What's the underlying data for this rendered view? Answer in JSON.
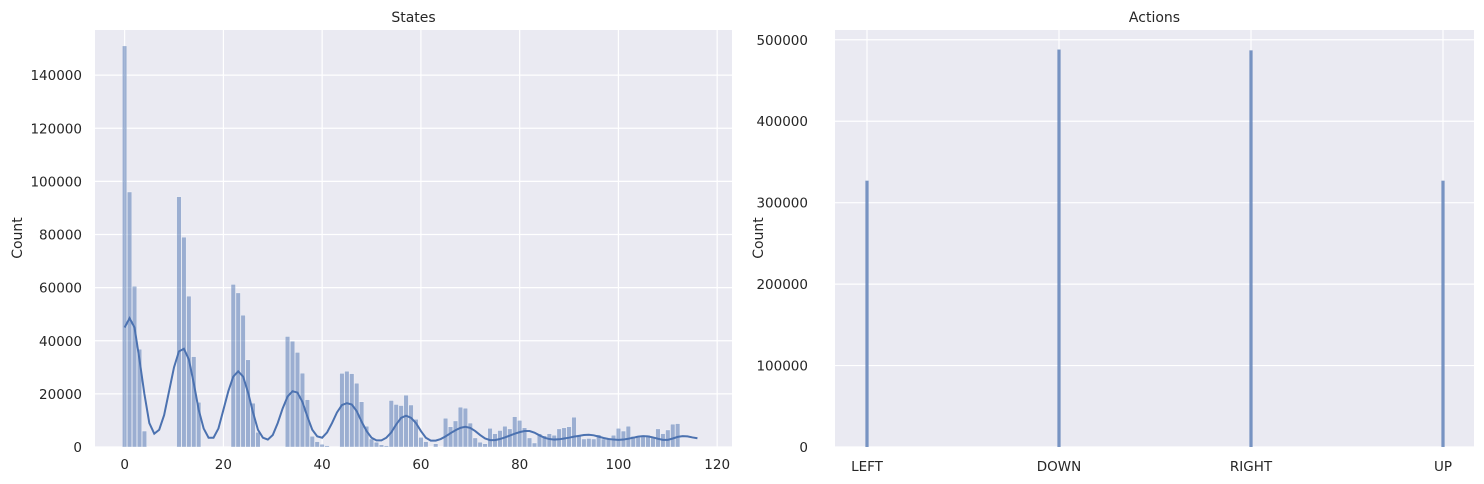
{
  "chart_data": [
    {
      "type": "histogram",
      "title": "States",
      "xlabel": "",
      "ylabel": "Count",
      "xlim": [
        -6,
        123
      ],
      "ylim": [
        0,
        157000
      ],
      "xticks": [
        0,
        20,
        40,
        60,
        80,
        100,
        120
      ],
      "yticks": [
        0,
        20000,
        40000,
        60000,
        80000,
        100000,
        120000,
        140000
      ],
      "grid": true,
      "bar_color": "#4c72b0",
      "kde": true,
      "bins": [
        {
          "x": 0,
          "count": 151000
        },
        {
          "x": 1,
          "count": 96000
        },
        {
          "x": 2,
          "count": 60500
        },
        {
          "x": 3,
          "count": 36800
        },
        {
          "x": 4,
          "count": 6000
        },
        {
          "x": 11,
          "count": 94200
        },
        {
          "x": 12,
          "count": 79000
        },
        {
          "x": 13,
          "count": 56800
        },
        {
          "x": 14,
          "count": 34000
        },
        {
          "x": 15,
          "count": 16800
        },
        {
          "x": 22,
          "count": 61200
        },
        {
          "x": 23,
          "count": 58000
        },
        {
          "x": 24,
          "count": 49600
        },
        {
          "x": 25,
          "count": 32800
        },
        {
          "x": 26,
          "count": 16500
        },
        {
          "x": 27,
          "count": 5500
        },
        {
          "x": 33,
          "count": 41600
        },
        {
          "x": 34,
          "count": 39800
        },
        {
          "x": 35,
          "count": 35600
        },
        {
          "x": 36,
          "count": 27800
        },
        {
          "x": 37,
          "count": 17800
        },
        {
          "x": 38,
          "count": 4000
        },
        {
          "x": 39,
          "count": 2000
        },
        {
          "x": 40,
          "count": 1000
        },
        {
          "x": 41,
          "count": 500
        },
        {
          "x": 44,
          "count": 27700
        },
        {
          "x": 45,
          "count": 28500
        },
        {
          "x": 46,
          "count": 27600
        },
        {
          "x": 47,
          "count": 24000
        },
        {
          "x": 48,
          "count": 17000
        },
        {
          "x": 49,
          "count": 7800
        },
        {
          "x": 50,
          "count": 3000
        },
        {
          "x": 51,
          "count": 1800
        },
        {
          "x": 52,
          "count": 800
        },
        {
          "x": 53,
          "count": 500
        },
        {
          "x": 54,
          "count": 17500
        },
        {
          "x": 55,
          "count": 16000
        },
        {
          "x": 56,
          "count": 15600
        },
        {
          "x": 57,
          "count": 19500
        },
        {
          "x": 58,
          "count": 15800
        },
        {
          "x": 59,
          "count": 10400
        },
        {
          "x": 60,
          "count": 3600
        },
        {
          "x": 61,
          "count": 2000
        },
        {
          "x": 63,
          "count": 1200
        },
        {
          "x": 65,
          "count": 10800
        },
        {
          "x": 66,
          "count": 7600
        },
        {
          "x": 67,
          "count": 9800
        },
        {
          "x": 68,
          "count": 15000
        },
        {
          "x": 69,
          "count": 14600
        },
        {
          "x": 70,
          "count": 9000
        },
        {
          "x": 71,
          "count": 3400
        },
        {
          "x": 72,
          "count": 1800
        },
        {
          "x": 73,
          "count": 1200
        },
        {
          "x": 74,
          "count": 7000
        },
        {
          "x": 75,
          "count": 5000
        },
        {
          "x": 76,
          "count": 6200
        },
        {
          "x": 77,
          "count": 7800
        },
        {
          "x": 78,
          "count": 6800
        },
        {
          "x": 79,
          "count": 11400
        },
        {
          "x": 80,
          "count": 10000
        },
        {
          "x": 81,
          "count": 7200
        },
        {
          "x": 82,
          "count": 3400
        },
        {
          "x": 83,
          "count": 1500
        },
        {
          "x": 84,
          "count": 5000
        },
        {
          "x": 85,
          "count": 4200
        },
        {
          "x": 86,
          "count": 5000
        },
        {
          "x": 87,
          "count": 4400
        },
        {
          "x": 88,
          "count": 6800
        },
        {
          "x": 89,
          "count": 7200
        },
        {
          "x": 90,
          "count": 7600
        },
        {
          "x": 91,
          "count": 11200
        },
        {
          "x": 92,
          "count": 4400
        },
        {
          "x": 93,
          "count": 3000
        },
        {
          "x": 94,
          "count": 3200
        },
        {
          "x": 95,
          "count": 3000
        },
        {
          "x": 96,
          "count": 4600
        },
        {
          "x": 97,
          "count": 3000
        },
        {
          "x": 98,
          "count": 3200
        },
        {
          "x": 99,
          "count": 4400
        },
        {
          "x": 100,
          "count": 7000
        },
        {
          "x": 101,
          "count": 6000
        },
        {
          "x": 102,
          "count": 7800
        },
        {
          "x": 103,
          "count": 4000
        },
        {
          "x": 104,
          "count": 3600
        },
        {
          "x": 105,
          "count": 3800
        },
        {
          "x": 106,
          "count": 4400
        },
        {
          "x": 107,
          "count": 3800
        },
        {
          "x": 108,
          "count": 6800
        },
        {
          "x": 109,
          "count": 5000
        },
        {
          "x": 110,
          "count": 6400
        },
        {
          "x": 111,
          "count": 8600
        },
        {
          "x": 112,
          "count": 8800
        }
      ],
      "kde_curve": [
        {
          "x": 0,
          "y": 45000
        },
        {
          "x": 1,
          "y": 48500
        },
        {
          "x": 2,
          "y": 45000
        },
        {
          "x": 3,
          "y": 33000
        },
        {
          "x": 4,
          "y": 20000
        },
        {
          "x": 5,
          "y": 9000
        },
        {
          "x": 6,
          "y": 5000
        },
        {
          "x": 7,
          "y": 6500
        },
        {
          "x": 8,
          "y": 12000
        },
        {
          "x": 9,
          "y": 21000
        },
        {
          "x": 10,
          "y": 30000
        },
        {
          "x": 11,
          "y": 36000
        },
        {
          "x": 12,
          "y": 37000
        },
        {
          "x": 13,
          "y": 33000
        },
        {
          "x": 14,
          "y": 24000
        },
        {
          "x": 15,
          "y": 14000
        },
        {
          "x": 16,
          "y": 7000
        },
        {
          "x": 17,
          "y": 3500
        },
        {
          "x": 18,
          "y": 3500
        },
        {
          "x": 19,
          "y": 7000
        },
        {
          "x": 20,
          "y": 14000
        },
        {
          "x": 21,
          "y": 21000
        },
        {
          "x": 22,
          "y": 26500
        },
        {
          "x": 23,
          "y": 28500
        },
        {
          "x": 24,
          "y": 26500
        },
        {
          "x": 25,
          "y": 20500
        },
        {
          "x": 26,
          "y": 13000
        },
        {
          "x": 27,
          "y": 6500
        },
        {
          "x": 28,
          "y": 3500
        },
        {
          "x": 29,
          "y": 2800
        },
        {
          "x": 30,
          "y": 4500
        },
        {
          "x": 31,
          "y": 9000
        },
        {
          "x": 32,
          "y": 14500
        },
        {
          "x": 33,
          "y": 19000
        },
        {
          "x": 34,
          "y": 21000
        },
        {
          "x": 35,
          "y": 20500
        },
        {
          "x": 36,
          "y": 17000
        },
        {
          "x": 37,
          "y": 11500
        },
        {
          "x": 38,
          "y": 6500
        },
        {
          "x": 39,
          "y": 4000
        },
        {
          "x": 40,
          "y": 3500
        },
        {
          "x": 41,
          "y": 5500
        },
        {
          "x": 42,
          "y": 9000
        },
        {
          "x": 43,
          "y": 13000
        },
        {
          "x": 44,
          "y": 15800
        },
        {
          "x": 45,
          "y": 16500
        },
        {
          "x": 46,
          "y": 16000
        },
        {
          "x": 47,
          "y": 13500
        },
        {
          "x": 48,
          "y": 9500
        },
        {
          "x": 49,
          "y": 6000
        },
        {
          "x": 50,
          "y": 3500
        },
        {
          "x": 51,
          "y": 2500
        },
        {
          "x": 52,
          "y": 2500
        },
        {
          "x": 53,
          "y": 3500
        },
        {
          "x": 54,
          "y": 5500
        },
        {
          "x": 55,
          "y": 8500
        },
        {
          "x": 56,
          "y": 11000
        },
        {
          "x": 57,
          "y": 11800
        },
        {
          "x": 58,
          "y": 11000
        },
        {
          "x": 59,
          "y": 9000
        },
        {
          "x": 60,
          "y": 6000
        },
        {
          "x": 61,
          "y": 3500
        },
        {
          "x": 62,
          "y": 2400
        },
        {
          "x": 63,
          "y": 2400
        },
        {
          "x": 64,
          "y": 3000
        },
        {
          "x": 65,
          "y": 4000
        },
        {
          "x": 66,
          "y": 5200
        },
        {
          "x": 67,
          "y": 6300
        },
        {
          "x": 68,
          "y": 7200
        },
        {
          "x": 69,
          "y": 7600
        },
        {
          "x": 70,
          "y": 7200
        },
        {
          "x": 71,
          "y": 6000
        },
        {
          "x": 72,
          "y": 4500
        },
        {
          "x": 73,
          "y": 3200
        },
        {
          "x": 74,
          "y": 2600
        },
        {
          "x": 75,
          "y": 2600
        },
        {
          "x": 76,
          "y": 3000
        },
        {
          "x": 77,
          "y": 3600
        },
        {
          "x": 78,
          "y": 4300
        },
        {
          "x": 79,
          "y": 5000
        },
        {
          "x": 80,
          "y": 5600
        },
        {
          "x": 81,
          "y": 6000
        },
        {
          "x": 82,
          "y": 6000
        },
        {
          "x": 83,
          "y": 5400
        },
        {
          "x": 84,
          "y": 4400
        },
        {
          "x": 85,
          "y": 3500
        },
        {
          "x": 86,
          "y": 3000
        },
        {
          "x": 87,
          "y": 2800
        },
        {
          "x": 88,
          "y": 2900
        },
        {
          "x": 89,
          "y": 3200
        },
        {
          "x": 90,
          "y": 3500
        },
        {
          "x": 91,
          "y": 3900
        },
        {
          "x": 92,
          "y": 4200
        },
        {
          "x": 93,
          "y": 4500
        },
        {
          "x": 94,
          "y": 4600
        },
        {
          "x": 95,
          "y": 4400
        },
        {
          "x": 96,
          "y": 3900
        },
        {
          "x": 97,
          "y": 3400
        },
        {
          "x": 98,
          "y": 3000
        },
        {
          "x": 99,
          "y": 2800
        },
        {
          "x": 100,
          "y": 2700
        },
        {
          "x": 101,
          "y": 2800
        },
        {
          "x": 102,
          "y": 3100
        },
        {
          "x": 103,
          "y": 3500
        },
        {
          "x": 104,
          "y": 3900
        },
        {
          "x": 105,
          "y": 4100
        },
        {
          "x": 106,
          "y": 4000
        },
        {
          "x": 107,
          "y": 3600
        },
        {
          "x": 108,
          "y": 3100
        },
        {
          "x": 109,
          "y": 2700
        },
        {
          "x": 110,
          "y": 2700
        },
        {
          "x": 111,
          "y": 3200
        },
        {
          "x": 112,
          "y": 3800
        },
        {
          "x": 113,
          "y": 4100
        },
        {
          "x": 114,
          "y": 4000
        },
        {
          "x": 115,
          "y": 3600
        },
        {
          "x": 116,
          "y": 3300
        }
      ]
    },
    {
      "type": "histogram",
      "title": "Actions",
      "xlabel": "",
      "ylabel": "Count",
      "categories": [
        "LEFT",
        "DOWN",
        "RIGHT",
        "UP"
      ],
      "values": [
        327000,
        488000,
        487000,
        327000
      ],
      "ylim": [
        0,
        512000
      ],
      "yticks": [
        0,
        100000,
        200000,
        300000,
        400000,
        500000
      ],
      "grid": true,
      "bar_color": "#4c72b0"
    }
  ]
}
